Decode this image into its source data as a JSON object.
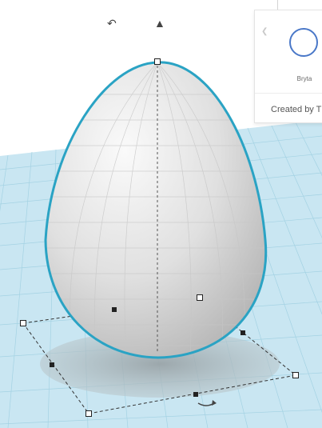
{
  "scene": {
    "object_name": "egg-shape",
    "colors": {
      "workplane": "#c9e6f2",
      "grid_line": "#9fcfe0",
      "selection_outline": "#2aa3c4",
      "egg_light": "#fafafa",
      "egg_dark": "#b7b7b7",
      "shadow": "#aab4b8"
    }
  },
  "toolbar": {
    "rotate_icon": "rotate-arc-icon",
    "lift_icon": "lift-cone-icon"
  },
  "shape_panel": {
    "shape_name": "Bryta",
    "created_by": "Created by T",
    "swatch_color": "#4a78c8",
    "arrow_icon": "chevron-left-icon"
  },
  "handles": {
    "corner_count": 4,
    "midpoint_count": 4,
    "top_handle": "height-handle",
    "rotate_handle": "rotate-arrow-icon"
  }
}
